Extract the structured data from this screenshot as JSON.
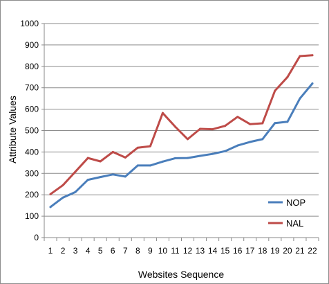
{
  "chart_data": {
    "type": "line",
    "title": "",
    "xlabel": "Websites  Sequence",
    "ylabel": "Attribute Values",
    "x": [
      1,
      2,
      3,
      4,
      5,
      6,
      7,
      8,
      9,
      10,
      11,
      12,
      13,
      14,
      15,
      16,
      17,
      18,
      19,
      20,
      21,
      22
    ],
    "ylim": [
      0,
      1000
    ],
    "yticks": [
      0,
      100,
      200,
      300,
      400,
      500,
      600,
      700,
      800,
      900,
      1000
    ],
    "grid": "horizontal",
    "legend_position": "bottom-right",
    "series": [
      {
        "name": "NOP",
        "color": "#4a7ebb",
        "values": [
          143,
          187,
          213,
          270,
          283,
          295,
          285,
          337,
          337,
          355,
          371,
          372,
          382,
          391,
          404,
          430,
          447,
          460,
          535,
          541,
          650,
          720
        ]
      },
      {
        "name": "NAL",
        "color": "#be4b48",
        "values": [
          203,
          245,
          308,
          372,
          356,
          400,
          374,
          420,
          427,
          582,
          518,
          460,
          508,
          506,
          522,
          564,
          530,
          534,
          686,
          750,
          848,
          852
        ]
      }
    ]
  }
}
